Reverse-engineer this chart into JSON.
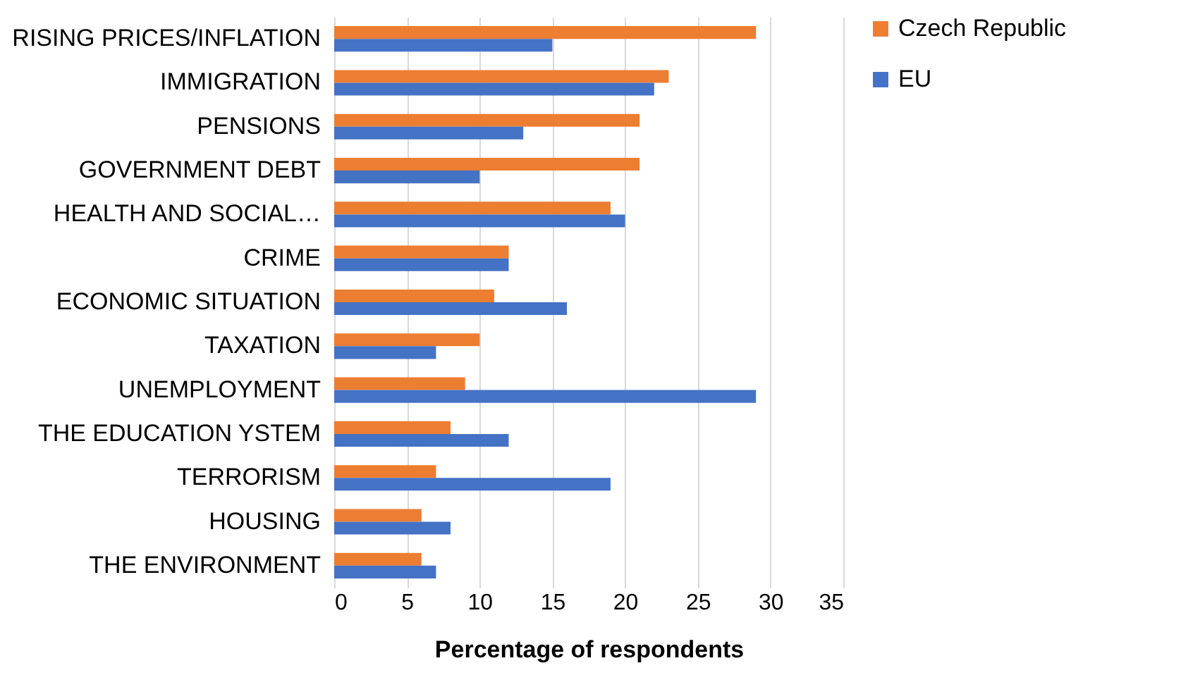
{
  "chart_data": {
    "type": "bar",
    "orientation": "horizontal",
    "xlabel": "Percentage of respondents",
    "categories": [
      "RISING PRICES/INFLATION",
      "IMMIGRATION",
      "PENSIONS",
      "GOVERNMENT DEBT",
      "HEALTH AND SOCIAL…",
      "CRIME",
      "ECONOMIC SITUATION",
      "TAXATION",
      "UNEMPLOYMENT",
      "THE EDUCATION YSTEM",
      "TERRORISM",
      "HOUSING",
      "THE ENVIRONMENT"
    ],
    "series": [
      {
        "name": "Czech Republic",
        "color": "#ed7d31",
        "values": [
          29,
          23,
          21,
          21,
          19,
          12,
          11,
          10,
          9,
          8,
          7,
          6,
          6
        ]
      },
      {
        "name": "EU",
        "color": "#4472c4",
        "values": [
          15,
          22,
          13,
          10,
          20,
          12,
          16,
          7,
          29,
          12,
          19,
          8,
          7
        ]
      }
    ],
    "xlim": [
      0,
      35
    ],
    "xticks": [
      0,
      5,
      10,
      15,
      20,
      25,
      30,
      35
    ],
    "grid": "x",
    "legend": "right"
  }
}
